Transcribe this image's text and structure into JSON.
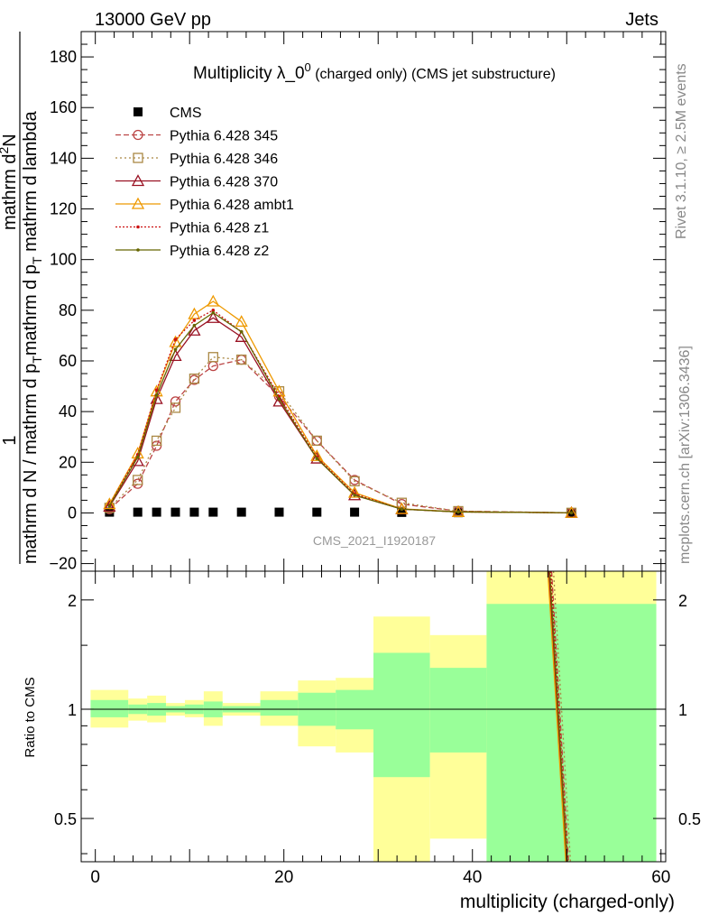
{
  "header": {
    "left": "13000 GeV pp",
    "right": "Jets",
    "rivet": "Rivet 3.1.10, ≥ 2.5M events",
    "mcplots": "mcplots.cern.ch [arXiv:1306.3436]",
    "analysis_id": "CMS_2021_I1920187"
  },
  "colors": {
    "cms": "#000000",
    "p345": "#bb4444",
    "p346": "#aa8844",
    "p370": "#991122",
    "ambt1": "#ee9900",
    "z1": "#cc1111",
    "z2": "#666600",
    "band_inner": "#99ff99",
    "band_outer": "#ffff99"
  },
  "chart_data": [
    {
      "type": "line",
      "title_main": "Multiplicity λ_0",
      "title_sup": "0",
      "title_note": " (charged only) (CMS jet substructure)",
      "ylabel_top": "1",
      "ylabel_bottom": "mathrm d N / mathrm d p",
      "ylabel_bottom2": "mathrm d p",
      "ylabel_bottom3": "T",
      "ylabel_num": "mathrm d N",
      "ylabel_num2": "2",
      "ylabel_den": "mathrm d p",
      "ylabel_den2": "T",
      "ylabel_den3": "mathrm d lambda",
      "ylabel_full_top": "mathrm d",
      "ylabel_full_sup": "2",
      "ylabel_full_mid": "N",
      "ylabel_full_den": "mathrm d p",
      "ylabel_full_sub": "T",
      "ylabel_full_end": " mathrm d lambda",
      "xlim": [
        -1.5,
        60.5
      ],
      "ylim": [
        -23,
        190
      ],
      "yticks": [
        -20,
        0,
        20,
        40,
        60,
        80,
        100,
        120,
        140,
        160,
        180
      ],
      "yticklabels": [
        "−20",
        "0",
        "20",
        "40",
        "60",
        "80",
        "100",
        "120",
        "140",
        "160",
        "180"
      ],
      "legend_position": "top-left",
      "legend": [
        {
          "key": "cms",
          "label": "CMS"
        },
        {
          "key": "p345",
          "label": "Pythia 6.428 345"
        },
        {
          "key": "p346",
          "label": "Pythia 6.428 346"
        },
        {
          "key": "p370",
          "label": "Pythia 6.428 370"
        },
        {
          "key": "ambt1",
          "label": "Pythia 6.428 ambt1"
        },
        {
          "key": "z1",
          "label": "Pythia 6.428 z1"
        },
        {
          "key": "z2",
          "label": "Pythia 6.428 z2"
        }
      ],
      "x": [
        1.5,
        4.5,
        6.5,
        8.5,
        10.5,
        12.5,
        15.5,
        19.5,
        23.5,
        27.5,
        32.5,
        38.5,
        50.5
      ],
      "series": [
        {
          "name": "CMS",
          "key": "cms",
          "marker": "square",
          "values": [
            0.3,
            0.3,
            0.3,
            0.3,
            0.3,
            0.3,
            0.3,
            0.3,
            0.3,
            0.3,
            0.2,
            0.1,
            0.02
          ]
        },
        {
          "name": "Pythia 6.428 345",
          "key": "p345",
          "marker": "circle",
          "dash": "6,3",
          "values": [
            1.5,
            11.5,
            26.5,
            44,
            52.5,
            58,
            60.5,
            46,
            28.5,
            13,
            3.5,
            0.7,
            0.05
          ]
        },
        {
          "name": "Pythia 6.428 346",
          "key": "p346",
          "marker": "square-open",
          "dash": "2,3",
          "values": [
            2.0,
            13,
            28.5,
            41.5,
            53,
            61.5,
            60.5,
            48,
            28.5,
            12.5,
            4,
            0.7,
            0.05
          ]
        },
        {
          "name": "Pythia 6.428 370",
          "key": "p370",
          "marker": "triangle-open",
          "dash": "",
          "values": [
            2.5,
            20.5,
            45,
            62,
            72,
            77,
            69.5,
            44,
            21.5,
            7,
            1.5,
            0.4,
            0.05
          ]
        },
        {
          "name": "Pythia 6.428 ambt1",
          "key": "ambt1",
          "marker": "triangle-open",
          "dash": "",
          "values": [
            3.5,
            23.5,
            48,
            67.5,
            78.5,
            83.5,
            75.5,
            48,
            22.5,
            8,
            1.6,
            0.4,
            0.05
          ]
        },
        {
          "name": "Pythia 6.428 z1",
          "key": "z1",
          "marker": "dot",
          "dash": "2,2",
          "values": [
            3.0,
            23,
            48.5,
            68.5,
            76,
            80,
            71.5,
            46,
            22,
            7.5,
            1.5,
            0.4,
            0.05
          ]
        },
        {
          "name": "Pythia 6.428 z2",
          "key": "z2",
          "marker": "dot",
          "dash": "",
          "values": [
            2.8,
            22,
            46.5,
            64.5,
            74,
            79,
            71.5,
            45,
            21.5,
            7,
            1.5,
            0.4,
            0.05
          ]
        }
      ]
    },
    {
      "type": "area",
      "ylabel": "Ratio to CMS",
      "xlabel": "multiplicity (charged-only)",
      "xlim": [
        -1.5,
        60.5
      ],
      "ylim": [
        0.38,
        2.4
      ],
      "scale": "log",
      "xticks": [
        0,
        20,
        40,
        60
      ],
      "xticklabels": [
        "0",
        "20",
        "40",
        "60"
      ],
      "yticks": [
        0.5,
        1,
        2
      ],
      "yticklabels": [
        "0.5",
        "1",
        "2"
      ],
      "bands": [
        {
          "x0": -0.5,
          "x1": 3.5,
          "inner": [
            0.95,
            1.06
          ],
          "outer": [
            0.89,
            1.13
          ]
        },
        {
          "x0": 3.5,
          "x1": 5.5,
          "inner": [
            0.97,
            1.03
          ],
          "outer": [
            0.93,
            1.07
          ]
        },
        {
          "x0": 5.5,
          "x1": 7.5,
          "inner": [
            0.96,
            1.04
          ],
          "outer": [
            0.92,
            1.09
          ]
        },
        {
          "x0": 7.5,
          "x1": 9.5,
          "inner": [
            0.98,
            1.02
          ],
          "outer": [
            0.96,
            1.04
          ]
        },
        {
          "x0": 9.5,
          "x1": 11.5,
          "inner": [
            0.97,
            1.03
          ],
          "outer": [
            0.95,
            1.06
          ]
        },
        {
          "x0": 11.5,
          "x1": 13.5,
          "inner": [
            0.95,
            1.05
          ],
          "outer": [
            0.9,
            1.12
          ]
        },
        {
          "x0": 13.5,
          "x1": 17.5,
          "inner": [
            0.98,
            1.02
          ],
          "outer": [
            0.96,
            1.04
          ]
        },
        {
          "x0": 17.5,
          "x1": 21.5,
          "inner": [
            0.96,
            1.06
          ],
          "outer": [
            0.9,
            1.12
          ]
        },
        {
          "x0": 21.5,
          "x1": 25.5,
          "inner": [
            0.9,
            1.11
          ],
          "outer": [
            0.79,
            1.2
          ]
        },
        {
          "x0": 25.5,
          "x1": 29.5,
          "inner": [
            0.88,
            1.13
          ],
          "outer": [
            0.76,
            1.22
          ]
        },
        {
          "x0": 29.5,
          "x1": 35.5,
          "inner": [
            0.65,
            1.43
          ],
          "outer": [
            0.38,
            1.8
          ]
        },
        {
          "x0": 35.5,
          "x1": 41.5,
          "inner": [
            0.76,
            1.3
          ],
          "outer": [
            0.44,
            1.6
          ]
        },
        {
          "x0": 41.5,
          "x1": 59.5,
          "inner": [
            0.38,
            1.95
          ],
          "outer": [
            0.38,
            2.4
          ]
        }
      ],
      "ratio_lines": [
        {
          "key": "p345",
          "dash": "6,3",
          "from": [
            48.4,
            2.4
          ],
          "to": [
            50.2,
            0.38
          ]
        },
        {
          "key": "p346",
          "dash": "2,3",
          "from": [
            48.6,
            2.4
          ],
          "to": [
            50.4,
            0.38
          ]
        },
        {
          "key": "p370",
          "dash": "",
          "from": [
            48.1,
            2.4
          ],
          "to": [
            50.0,
            0.38
          ]
        },
        {
          "key": "ambt1",
          "dash": "",
          "from": [
            48.0,
            2.4
          ],
          "to": [
            49.9,
            0.38
          ]
        },
        {
          "key": "z1",
          "dash": "2,2",
          "from": [
            48.3,
            2.4
          ],
          "to": [
            50.1,
            0.38
          ]
        },
        {
          "key": "z2",
          "dash": "",
          "from": [
            48.2,
            2.4
          ],
          "to": [
            50.05,
            0.38
          ]
        }
      ]
    }
  ]
}
